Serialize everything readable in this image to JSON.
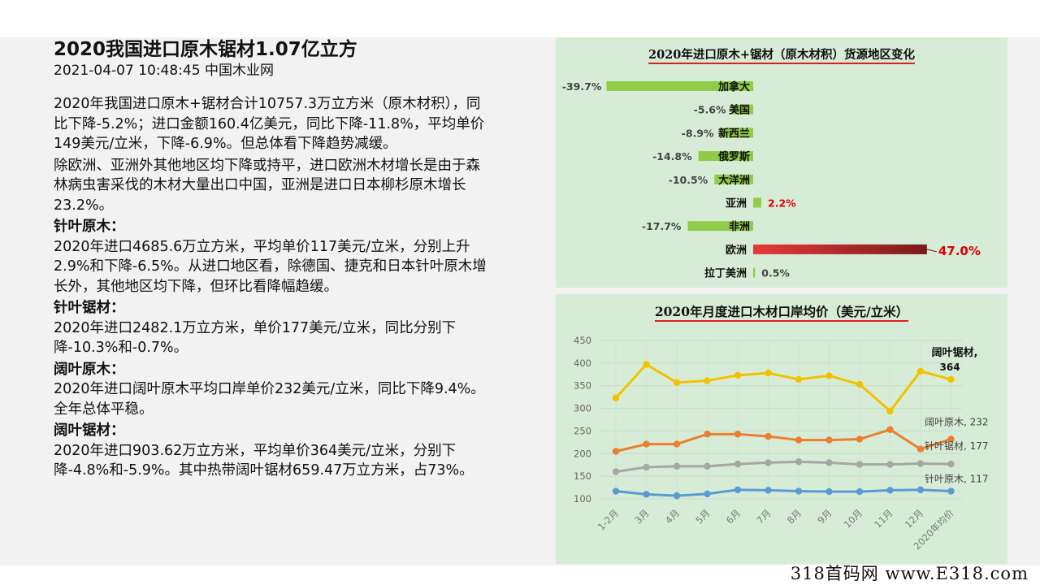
{
  "article": {
    "title": "2020我国进口原木锯材1.07亿立方",
    "meta": "2021-04-07 10:48:45 中国木业网",
    "intro": "2020年我国进口原木+锯材合计10757.3万立方米（原木材积），同比下降-5.2%；进口金额160.4亿美元，同比下降-11.8%，平均单价149美元/立米，下降-6.9%。但总体看下降趋势减缓。",
    "region_para": "除欧洲、亚洲外其他地区均下降或持平，进口欧洲木材增长是由于森林病虫害采伐的木材大量出口中国，亚洲是进口日本柳杉原木增长23.2%。",
    "sections": [
      {
        "heading": "针叶原木：",
        "text": "2020年进口4685.6万立方米，平均单价117美元/立米，分别上升2.9%和下降-6.5%。从进口地区看，除德国、捷克和日本针叶原木增长外，其他地区均下降，但环比看降幅趋缓。"
      },
      {
        "heading": "针叶锯材：",
        "text": "2020年进口2482.1万立方米，单价177美元/立米，同比分别下降-10.3%和-0.7%。"
      },
      {
        "heading": "阔叶原木：",
        "text": "2020年进口阔叶原木平均口岸单价232美元/立米，同比下降9.4%。全年总体平稳。"
      },
      {
        "heading": "阔叶锯材：",
        "text": "2020年进口903.62万立方米，平均单价364美元/立米，分别下降-4.8%和-5.9%。其中热带阔叶锯材659.47万立方米，占73%。"
      }
    ]
  },
  "chart_data": [
    {
      "type": "bar",
      "orientation": "horizontal",
      "title": "2020年进口原木+锯材（原木材积）货源地区变化",
      "categories": [
        "加拿大",
        "美国",
        "新西兰",
        "俄罗斯",
        "大洋洲",
        "亚洲",
        "非洲",
        "欧洲",
        "拉丁美洲"
      ],
      "values": [
        -39.7,
        -5.6,
        -8.9,
        -14.8,
        -10.5,
        2.2,
        -17.7,
        47.0,
        0.5
      ],
      "value_labels": [
        "-39.7%",
        "-5.6%",
        "-8.9%",
        "-14.8%",
        "-10.5%",
        "2.2%",
        "-17.7%",
        "47.0%",
        "0.5%"
      ],
      "unit": "%",
      "colors": {
        "negative": "#8fcc4a",
        "positive_small": "#8fcc4a",
        "highlight_low": "#e63a3a",
        "highlight_high": "#7a1a1a",
        "highlight_label": "#e00000"
      }
    },
    {
      "type": "line",
      "title": "2020年月度进口木材口岸均价（美元/立米）",
      "x": [
        "1-2月",
        "3月",
        "4月",
        "5月",
        "6月",
        "7月",
        "8月",
        "9月",
        "10月",
        "11月",
        "12月",
        "2020年均价"
      ],
      "ylim": [
        100,
        450
      ],
      "yticks": [
        100,
        150,
        200,
        250,
        300,
        350,
        400,
        450
      ],
      "grid": true,
      "series": [
        {
          "name": "阔叶锯材",
          "label": "阔叶锯材,",
          "end_value": "364",
          "color": "#f2c200",
          "values": [
            323,
            397,
            357,
            361,
            373,
            378,
            364,
            372,
            353,
            294,
            382,
            364
          ]
        },
        {
          "name": "阔叶原木",
          "label": "阔叶原木, 232",
          "color": "#ed7d31",
          "values": [
            205,
            221,
            221,
            243,
            243,
            238,
            230,
            230,
            232,
            253,
            210,
            232
          ]
        },
        {
          "name": "针叶锯材",
          "label": "针叶锯材, 177",
          "color": "#a6a6a6",
          "values": [
            160,
            170,
            172,
            172,
            177,
            180,
            182,
            180,
            176,
            176,
            178,
            177
          ]
        },
        {
          "name": "针叶原木",
          "label": "针叶原木, 117",
          "color": "#5b9bd5",
          "values": [
            117,
            110,
            107,
            111,
            120,
            119,
            117,
            116,
            116,
            119,
            120,
            117
          ]
        }
      ]
    }
  ],
  "footer": "318首码网  www.E318.com"
}
